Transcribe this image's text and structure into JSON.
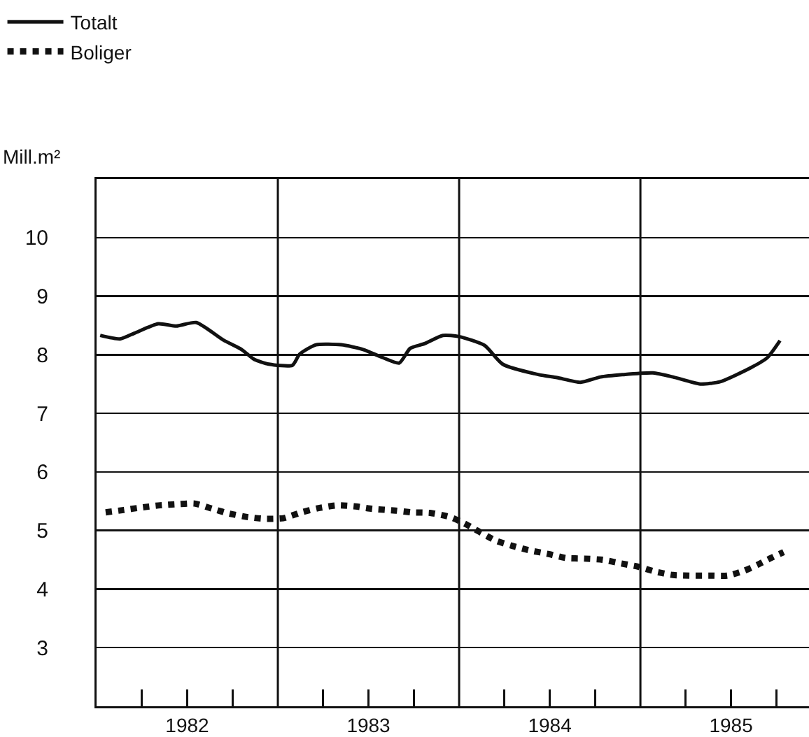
{
  "chart_data": {
    "type": "line",
    "ylabel": "Mill.m²",
    "ylim": [
      2,
      11
    ],
    "yticks": [
      3,
      4,
      5,
      6,
      7,
      8,
      9,
      10
    ],
    "xlim": [
      1982,
      1985.93
    ],
    "xticks": [
      {
        "value": 1982.25,
        "label": null
      },
      {
        "value": 1982.5,
        "label": "1982"
      },
      {
        "value": 1982.75,
        "label": null
      },
      {
        "value": 1983.25,
        "label": null
      },
      {
        "value": 1983.5,
        "label": "1983"
      },
      {
        "value": 1983.75,
        "label": null
      },
      {
        "value": 1984.25,
        "label": null
      },
      {
        "value": 1984.5,
        "label": "1984"
      },
      {
        "value": 1984.75,
        "label": null
      },
      {
        "value": 1985.25,
        "label": null
      },
      {
        "value": 1985.5,
        "label": "1985"
      },
      {
        "value": 1985.75,
        "label": null
      }
    ],
    "grid": "y",
    "legend": "top left",
    "marker": "none",
    "ref_lines": [
      {
        "axis": "x",
        "value": 1983
      },
      {
        "axis": "x",
        "value": 1984
      },
      {
        "axis": "x",
        "value": 1985
      }
    ],
    "series": [
      {
        "name": "Totalt",
        "color": "#111111",
        "line_style": "solid",
        "x": [
          1982.02,
          1982.13,
          1982.21,
          1982.34,
          1982.44,
          1982.55,
          1982.7,
          1982.8,
          1982.87,
          1982.95,
          1983.08,
          1983.12,
          1983.21,
          1983.35,
          1983.47,
          1983.58,
          1983.67,
          1983.73,
          1983.81,
          1983.91,
          1984.0,
          1984.14,
          1984.24,
          1984.44,
          1984.54,
          1984.67,
          1984.78,
          1984.9,
          1985.07,
          1985.18,
          1985.33,
          1985.44,
          1985.61,
          1985.7,
          1985.77
        ],
        "values": [
          8.33,
          8.27,
          8.37,
          8.53,
          8.49,
          8.55,
          8.25,
          8.09,
          7.92,
          7.84,
          7.82,
          8.01,
          8.17,
          8.17,
          8.09,
          7.95,
          7.86,
          8.11,
          8.19,
          8.33,
          8.31,
          8.16,
          7.84,
          7.66,
          7.61,
          7.53,
          7.62,
          7.66,
          7.69,
          7.62,
          7.5,
          7.54,
          7.78,
          7.95,
          8.24
        ]
      },
      {
        "name": "Boliger",
        "color": "#111111",
        "line_style": "dotted",
        "x": [
          1982.05,
          1982.15,
          1982.24,
          1982.35,
          1982.45,
          1982.54,
          1982.64,
          1982.73,
          1982.83,
          1982.93,
          1983.03,
          1983.13,
          1983.22,
          1983.33,
          1983.43,
          1983.52,
          1983.65,
          1983.74,
          1983.84,
          1983.95,
          1984.03,
          1984.2,
          1984.29,
          1984.39,
          1984.49,
          1984.59,
          1984.69,
          1984.79,
          1984.89,
          1984.99,
          1985.08,
          1985.18,
          1985.28,
          1985.38,
          1985.48,
          1985.57,
          1985.65,
          1985.72,
          1985.79
        ],
        "values": [
          5.31,
          5.35,
          5.39,
          5.43,
          5.45,
          5.46,
          5.37,
          5.29,
          5.23,
          5.2,
          5.21,
          5.31,
          5.38,
          5.43,
          5.41,
          5.37,
          5.34,
          5.31,
          5.3,
          5.23,
          5.12,
          4.83,
          4.74,
          4.66,
          4.6,
          4.53,
          4.52,
          4.5,
          4.44,
          4.38,
          4.3,
          4.24,
          4.23,
          4.23,
          4.23,
          4.31,
          4.42,
          4.53,
          4.63
        ]
      }
    ]
  }
}
